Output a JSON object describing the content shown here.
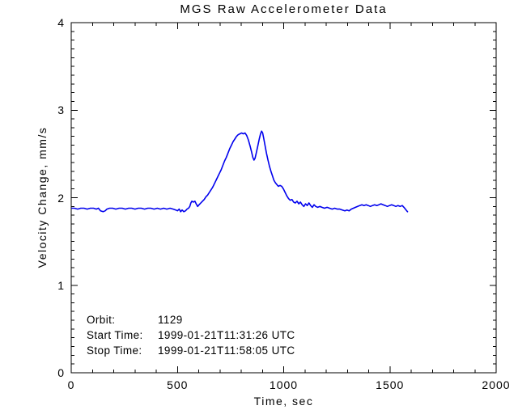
{
  "chart_data": {
    "type": "line",
    "title": "MGS Raw Accelerometer Data",
    "xlabel": "Time, sec",
    "ylabel": "Velocity Change, mm/s",
    "xlim": [
      0,
      2000
    ],
    "ylim": [
      0,
      4
    ],
    "x_ticks": [
      0,
      500,
      1000,
      1500,
      2000
    ],
    "y_ticks": [
      0,
      1,
      2,
      3,
      4
    ],
    "x_minor_interval": 100,
    "y_minor_interval": 0.1,
    "grid": false,
    "legend": "none",
    "background_color": "#ffffff",
    "axis_color": "#000000",
    "line_color": "#0000ee",
    "annotations": [
      {
        "label": "Orbit:",
        "value": "1129"
      },
      {
        "label": "Start Time:",
        "value": "1999-01-21T11:31:26 UTC"
      },
      {
        "label": "Stop Time:",
        "value": "1999-01-21T11:58:05 UTC"
      }
    ],
    "series": [
      {
        "name": "velocity_change_mm_s",
        "points": [
          [
            3,
            1.88
          ],
          [
            15,
            1.88
          ],
          [
            30,
            1.87
          ],
          [
            45,
            1.88
          ],
          [
            60,
            1.88
          ],
          [
            75,
            1.87
          ],
          [
            90,
            1.88
          ],
          [
            105,
            1.88
          ],
          [
            118,
            1.87
          ],
          [
            128,
            1.88
          ],
          [
            138,
            1.85
          ],
          [
            150,
            1.84
          ],
          [
            160,
            1.85
          ],
          [
            168,
            1.87
          ],
          [
            180,
            1.88
          ],
          [
            195,
            1.88
          ],
          [
            210,
            1.87
          ],
          [
            225,
            1.88
          ],
          [
            240,
            1.88
          ],
          [
            255,
            1.87
          ],
          [
            270,
            1.88
          ],
          [
            285,
            1.88
          ],
          [
            300,
            1.87
          ],
          [
            315,
            1.88
          ],
          [
            330,
            1.88
          ],
          [
            345,
            1.87
          ],
          [
            360,
            1.88
          ],
          [
            375,
            1.88
          ],
          [
            390,
            1.87
          ],
          [
            405,
            1.88
          ],
          [
            420,
            1.87
          ],
          [
            435,
            1.88
          ],
          [
            450,
            1.87
          ],
          [
            465,
            1.88
          ],
          [
            480,
            1.87
          ],
          [
            492,
            1.86
          ],
          [
            500,
            1.85
          ],
          [
            508,
            1.87
          ],
          [
            515,
            1.84
          ],
          [
            522,
            1.86
          ],
          [
            530,
            1.84
          ],
          [
            538,
            1.85
          ],
          [
            545,
            1.87
          ],
          [
            552,
            1.88
          ],
          [
            558,
            1.9
          ],
          [
            563,
            1.94
          ],
          [
            568,
            1.96
          ],
          [
            575,
            1.95
          ],
          [
            582,
            1.96
          ],
          [
            588,
            1.93
          ],
          [
            595,
            1.9
          ],
          [
            602,
            1.92
          ],
          [
            610,
            1.94
          ],
          [
            618,
            1.96
          ],
          [
            626,
            1.98
          ],
          [
            634,
            2.01
          ],
          [
            642,
            2.03
          ],
          [
            650,
            2.06
          ],
          [
            658,
            2.09
          ],
          [
            666,
            2.12
          ],
          [
            674,
            2.16
          ],
          [
            682,
            2.2
          ],
          [
            690,
            2.24
          ],
          [
            698,
            2.28
          ],
          [
            706,
            2.32
          ],
          [
            714,
            2.37
          ],
          [
            722,
            2.42
          ],
          [
            730,
            2.46
          ],
          [
            738,
            2.51
          ],
          [
            746,
            2.56
          ],
          [
            754,
            2.6
          ],
          [
            762,
            2.64
          ],
          [
            770,
            2.67
          ],
          [
            778,
            2.7
          ],
          [
            786,
            2.72
          ],
          [
            794,
            2.73
          ],
          [
            802,
            2.74
          ],
          [
            810,
            2.73
          ],
          [
            818,
            2.74
          ],
          [
            826,
            2.71
          ],
          [
            834,
            2.66
          ],
          [
            842,
            2.59
          ],
          [
            849,
            2.52
          ],
          [
            855,
            2.46
          ],
          [
            860,
            2.43
          ],
          [
            865,
            2.45
          ],
          [
            871,
            2.51
          ],
          [
            878,
            2.59
          ],
          [
            885,
            2.67
          ],
          [
            891,
            2.73
          ],
          [
            896,
            2.76
          ],
          [
            901,
            2.74
          ],
          [
            906,
            2.68
          ],
          [
            912,
            2.6
          ],
          [
            919,
            2.51
          ],
          [
            926,
            2.43
          ],
          [
            933,
            2.36
          ],
          [
            940,
            2.3
          ],
          [
            947,
            2.25
          ],
          [
            954,
            2.2
          ],
          [
            961,
            2.17
          ],
          [
            968,
            2.15
          ],
          [
            975,
            2.13
          ],
          [
            983,
            2.14
          ],
          [
            991,
            2.13
          ],
          [
            999,
            2.1
          ],
          [
            1007,
            2.06
          ],
          [
            1015,
            2.02
          ],
          [
            1023,
            1.99
          ],
          [
            1031,
            1.97
          ],
          [
            1039,
            1.98
          ],
          [
            1047,
            1.95
          ],
          [
            1055,
            1.94
          ],
          [
            1063,
            1.96
          ],
          [
            1071,
            1.93
          ],
          [
            1079,
            1.95
          ],
          [
            1087,
            1.92
          ],
          [
            1095,
            1.9
          ],
          [
            1103,
            1.93
          ],
          [
            1111,
            1.91
          ],
          [
            1119,
            1.94
          ],
          [
            1127,
            1.91
          ],
          [
            1135,
            1.89
          ],
          [
            1143,
            1.92
          ],
          [
            1151,
            1.9
          ],
          [
            1160,
            1.89
          ],
          [
            1170,
            1.9
          ],
          [
            1180,
            1.89
          ],
          [
            1192,
            1.88
          ],
          [
            1204,
            1.89
          ],
          [
            1216,
            1.88
          ],
          [
            1228,
            1.87
          ],
          [
            1240,
            1.88
          ],
          [
            1252,
            1.87
          ],
          [
            1264,
            1.87
          ],
          [
            1276,
            1.86
          ],
          [
            1288,
            1.85
          ],
          [
            1298,
            1.86
          ],
          [
            1308,
            1.85
          ],
          [
            1318,
            1.87
          ],
          [
            1328,
            1.88
          ],
          [
            1338,
            1.89
          ],
          [
            1348,
            1.9
          ],
          [
            1358,
            1.91
          ],
          [
            1368,
            1.92
          ],
          [
            1378,
            1.91
          ],
          [
            1388,
            1.92
          ],
          [
            1398,
            1.91
          ],
          [
            1408,
            1.9
          ],
          [
            1418,
            1.91
          ],
          [
            1428,
            1.92
          ],
          [
            1438,
            1.91
          ],
          [
            1448,
            1.92
          ],
          [
            1458,
            1.93
          ],
          [
            1468,
            1.92
          ],
          [
            1478,
            1.91
          ],
          [
            1488,
            1.9
          ],
          [
            1498,
            1.91
          ],
          [
            1508,
            1.92
          ],
          [
            1518,
            1.91
          ],
          [
            1528,
            1.9
          ],
          [
            1538,
            1.91
          ],
          [
            1548,
            1.9
          ],
          [
            1558,
            1.91
          ],
          [
            1566,
            1.89
          ],
          [
            1573,
            1.87
          ],
          [
            1579,
            1.85
          ],
          [
            1583,
            1.84
          ]
        ]
      }
    ]
  }
}
